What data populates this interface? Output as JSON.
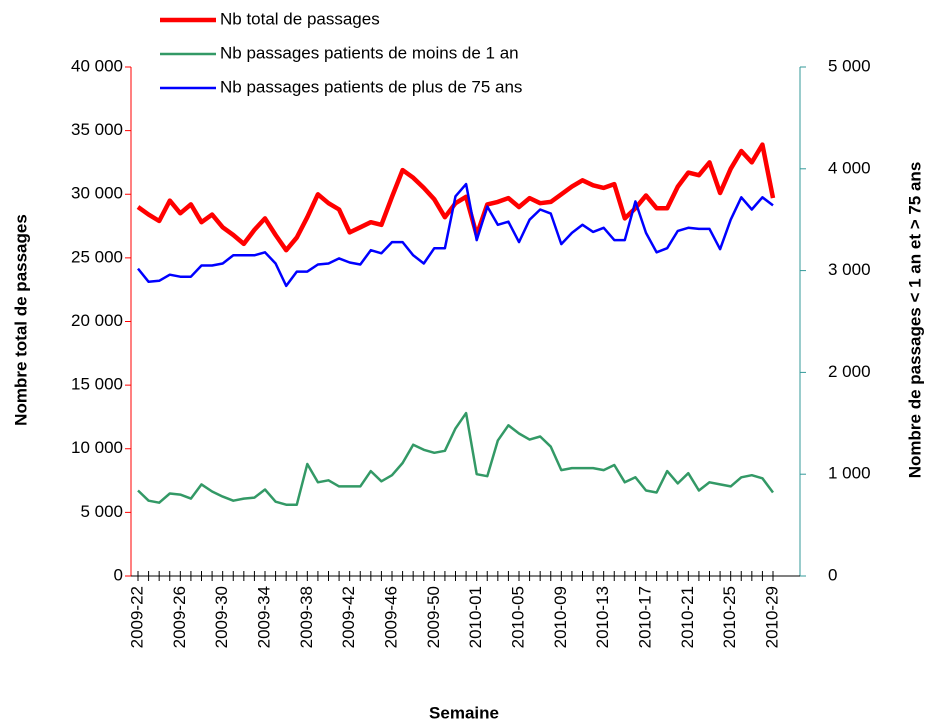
{
  "chart_data": {
    "type": "line",
    "xlabel": "Semaine",
    "ylabel": "Nombre total de passages",
    "y2label": "Nombre de passages < 1 an et > 75 ans",
    "categories": [
      "2009-22",
      null,
      null,
      null,
      "2009-26",
      null,
      null,
      null,
      "2009-30",
      null,
      null,
      null,
      "2009-34",
      null,
      null,
      null,
      "2009-38",
      null,
      null,
      null,
      "2009-42",
      null,
      null,
      null,
      "2009-46",
      null,
      null,
      null,
      "2009-50",
      null,
      null,
      null,
      "2010-01",
      null,
      null,
      null,
      "2010-05",
      null,
      null,
      null,
      "2010-09",
      null,
      null,
      null,
      "2010-13",
      null,
      null,
      null,
      "2010-17",
      null,
      null,
      null,
      "2010-21",
      null,
      null,
      null,
      "2010-25",
      null,
      null,
      null,
      "2010-29"
    ],
    "ylim": [
      0,
      40000
    ],
    "yticks": [
      0,
      {
        "value": 5000,
        "label": "5 000"
      },
      {
        "value": 10000,
        "label": "10 000"
      },
      {
        "value": 15000,
        "label": "15 000"
      },
      {
        "value": 20000,
        "label": "20 000"
      },
      {
        "value": 25000,
        "label": "25 000"
      },
      {
        "value": 30000,
        "label": "30 000"
      },
      {
        "value": 35000,
        "label": "35 000"
      },
      {
        "value": 40000,
        "label": "40 000"
      }
    ],
    "y2lim": [
      0,
      5000
    ],
    "y2ticks": [
      0,
      {
        "value": 1000,
        "label": "1 000"
      },
      {
        "value": 2000,
        "label": "2 000"
      },
      {
        "value": 3000,
        "label": "3 000"
      },
      {
        "value": 4000,
        "label": "4 000"
      },
      {
        "value": 5000,
        "label": "5 000"
      }
    ],
    "y_axis_color": "#ff0000",
    "y2_axis_color": "#339999",
    "grid": false,
    "series": [
      {
        "name": "Nb total de passages",
        "color": "#ff0000",
        "values": [
          29000,
          28400,
          27900,
          29500,
          28500,
          29200,
          27800,
          28400,
          27400,
          26800,
          26100,
          27200,
          28100,
          26800,
          25600,
          26600,
          28200,
          30000,
          29300,
          28800,
          27000,
          27400,
          27800,
          27600,
          29800,
          31900,
          31300,
          30500,
          29600,
          28200,
          29300,
          29800,
          26800,
          29200,
          29400,
          29700,
          29000,
          29700,
          29300,
          29400,
          30000,
          30600,
          31100,
          30700,
          30500,
          30800,
          28100,
          28900,
          29900,
          28900,
          28900,
          30600,
          31700,
          31500,
          32500,
          30100,
          32000,
          33400,
          32500,
          33900,
          29700
        ]
      },
      {
        "name": "Nb passages patients de moins de 1 an",
        "color": "#339966",
        "axis": "y2",
        "values": [
          840,
          740,
          720,
          810,
          800,
          760,
          900,
          830,
          780,
          740,
          760,
          770,
          850,
          730,
          700,
          700,
          1100,
          920,
          940,
          880,
          880,
          880,
          1030,
          930,
          990,
          1110,
          1290,
          1240,
          1210,
          1230,
          1450,
          1600,
          1000,
          980,
          1330,
          1480,
          1400,
          1340,
          1370,
          1270,
          1040,
          1060,
          1060,
          1060,
          1040,
          1090,
          920,
          970,
          840,
          820,
          1030,
          910,
          1010,
          840,
          920,
          900,
          880,
          970,
          990,
          960,
          820
        ]
      },
      {
        "name": "Nb passages patients de plus de 75 ans",
        "color": "#0000ff",
        "axis": "y2",
        "values": [
          3020,
          2890,
          2900,
          2960,
          2940,
          2940,
          3050,
          3050,
          3070,
          3150,
          3150,
          3150,
          3180,
          3070,
          2850,
          2990,
          2990,
          3060,
          3070,
          3120,
          3080,
          3060,
          3200,
          3170,
          3280,
          3280,
          3150,
          3070,
          3220,
          3220,
          3730,
          3850,
          3300,
          3630,
          3450,
          3480,
          3280,
          3500,
          3600,
          3560,
          3260,
          3370,
          3450,
          3380,
          3420,
          3300,
          3300,
          3680,
          3370,
          3180,
          3220,
          3390,
          3420,
          3410,
          3410,
          3210,
          3500,
          3720,
          3600,
          3720,
          3640
        ]
      }
    ]
  }
}
